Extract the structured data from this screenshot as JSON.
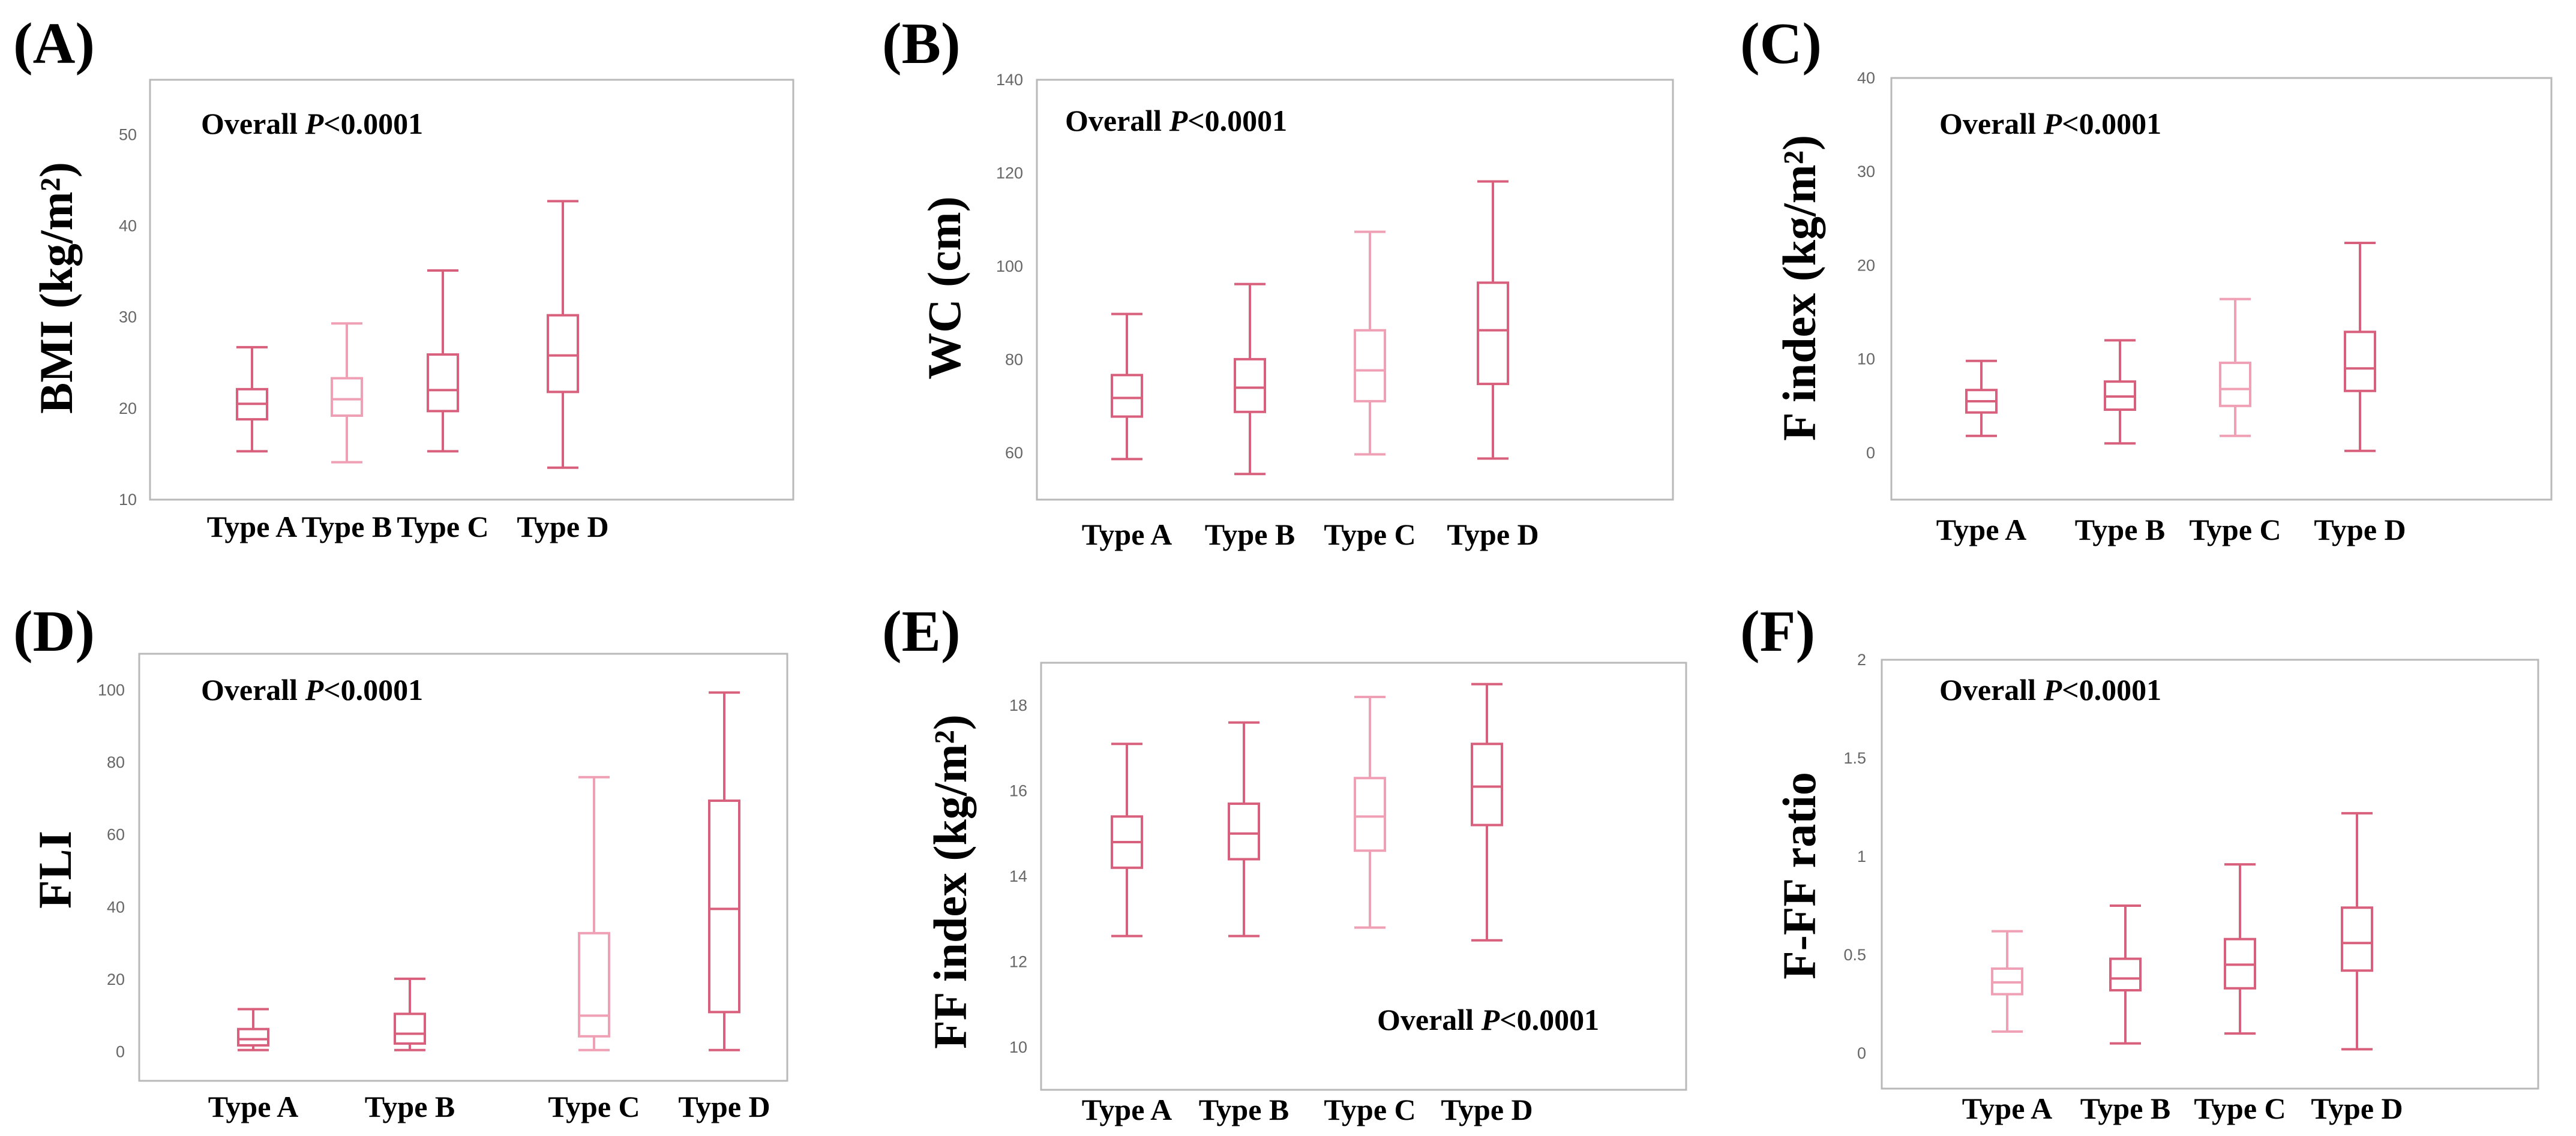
{
  "chart_data": [
    {
      "type": "box",
      "panel_label": "(A)",
      "ylabel": "BMI (kg/m²)",
      "categories": [
        "Type A",
        "Type B",
        "Type C",
        "Type D"
      ],
      "yticks": [
        10,
        20,
        30,
        40,
        50
      ],
      "ylim": [
        10,
        56
      ],
      "annotation_prefix": "Overall ",
      "annotation_italic": "P",
      "annotation_suffix": "<0.0001",
      "annotation_position": "top-left",
      "boxes": [
        {
          "min": 15.3,
          "q1": 18.8,
          "median": 20.5,
          "q3": 22.1,
          "max": 26.7
        },
        {
          "min": 14.1,
          "q1": 19.2,
          "median": 21.0,
          "q3": 23.3,
          "max": 29.3
        },
        {
          "min": 15.3,
          "q1": 19.7,
          "median": 22.0,
          "q3": 25.9,
          "max": 35.1
        },
        {
          "min": 13.5,
          "q1": 21.8,
          "median": 25.8,
          "q3": 30.2,
          "max": 42.7
        }
      ]
    },
    {
      "type": "box",
      "panel_label": "(B)",
      "ylabel": "WC (cm)",
      "categories": [
        "Type A",
        "Type B",
        "Type C",
        "Type D"
      ],
      "yticks": [
        60,
        80,
        100,
        120,
        140
      ],
      "ylim": [
        50,
        140
      ],
      "annotation_prefix": "Overall ",
      "annotation_italic": "P",
      "annotation_suffix": "<0.0001",
      "annotation_position": "top-left",
      "boxes": [
        {
          "min": 58.7,
          "q1": 67.8,
          "median": 71.8,
          "q3": 76.7,
          "max": 89.8
        },
        {
          "min": 55.5,
          "q1": 68.8,
          "median": 74.0,
          "q3": 80.1,
          "max": 96.2
        },
        {
          "min": 59.7,
          "q1": 71.1,
          "median": 77.7,
          "q3": 86.3,
          "max": 107.4
        },
        {
          "min": 58.8,
          "q1": 74.8,
          "median": 86.3,
          "q3": 96.5,
          "max": 118.2
        }
      ]
    },
    {
      "type": "box",
      "panel_label": "(C)",
      "ylabel": "F index (kg/m²)",
      "categories": [
        "Type A",
        "Type B",
        "Type C",
        "Type D"
      ],
      "yticks": [
        0,
        10,
        20,
        30,
        40
      ],
      "ylim": [
        -5,
        40
      ],
      "annotation_prefix": "Overall ",
      "annotation_italic": "P",
      "annotation_suffix": "<0.0001",
      "annotation_position": "top-left",
      "boxes": [
        {
          "min": 1.8,
          "q1": 4.3,
          "median": 5.5,
          "q3": 6.7,
          "max": 9.8
        },
        {
          "min": 1.0,
          "q1": 4.6,
          "median": 6.0,
          "q3": 7.6,
          "max": 12.0
        },
        {
          "min": 1.8,
          "q1": 5.0,
          "median": 6.8,
          "q3": 9.6,
          "max": 16.4
        },
        {
          "min": 0.2,
          "q1": 6.6,
          "median": 9.0,
          "q3": 12.9,
          "max": 22.4
        }
      ]
    },
    {
      "type": "box",
      "panel_label": "(D)",
      "ylabel": "FLI",
      "categories": [
        "Type A",
        "Type B",
        "Type C",
        "Type D"
      ],
      "yticks": [
        0,
        20,
        40,
        60,
        80,
        100
      ],
      "ylim": [
        -8,
        110
      ],
      "annotation_prefix": "Overall ",
      "annotation_italic": "P",
      "annotation_suffix": "<0.0001",
      "annotation_position": "top-left",
      "boxes": [
        {
          "min": 0.5,
          "q1": 1.8,
          "median": 3.5,
          "q3": 6.3,
          "max": 11.8
        },
        {
          "min": 0.5,
          "q1": 2.3,
          "median": 5.0,
          "q3": 10.5,
          "max": 20.2
        },
        {
          "min": 0.5,
          "q1": 4.3,
          "median": 10.0,
          "q3": 32.8,
          "max": 75.9
        },
        {
          "min": 0.5,
          "q1": 11.0,
          "median": 39.5,
          "q3": 69.4,
          "max": 99.3
        }
      ]
    },
    {
      "type": "box",
      "panel_label": "(E)",
      "ylabel": "FF index (kg/m²)",
      "categories": [
        "Type A",
        "Type B",
        "Type C",
        "Type D"
      ],
      "yticks": [
        10,
        12,
        14,
        16,
        18
      ],
      "ylim": [
        9,
        19
      ],
      "annotation_prefix": "Overall ",
      "annotation_italic": "P",
      "annotation_suffix": "<0.0001",
      "annotation_position": "bottom-right",
      "boxes": [
        {
          "min": 12.6,
          "q1": 14.2,
          "median": 14.8,
          "q3": 15.4,
          "max": 17.1
        },
        {
          "min": 12.6,
          "q1": 14.4,
          "median": 15.0,
          "q3": 15.7,
          "max": 17.6
        },
        {
          "min": 12.8,
          "q1": 14.6,
          "median": 15.4,
          "q3": 16.3,
          "max": 18.2
        },
        {
          "min": 12.5,
          "q1": 15.2,
          "median": 16.1,
          "q3": 17.1,
          "max": 18.5
        }
      ]
    },
    {
      "type": "box",
      "panel_label": "(F)",
      "ylabel": "F-FF ratio",
      "categories": [
        "Type A",
        "Type B",
        "Type C",
        "Type D"
      ],
      "yticks": [
        0,
        0.5,
        1,
        1.5,
        2
      ],
      "yticklabels": [
        "0",
        "0.5",
        "1",
        "1.5",
        "2"
      ],
      "ylim": [
        -0.18,
        2
      ],
      "annotation_prefix": "Overall ",
      "annotation_italic": "P",
      "annotation_suffix": "<0.0001",
      "annotation_position": "top-left",
      "boxes": [
        {
          "min": 0.11,
          "q1": 0.3,
          "median": 0.36,
          "q3": 0.43,
          "max": 0.62
        },
        {
          "min": 0.05,
          "q1": 0.32,
          "median": 0.38,
          "q3": 0.48,
          "max": 0.75
        },
        {
          "min": 0.1,
          "q1": 0.33,
          "median": 0.45,
          "q3": 0.58,
          "max": 0.96
        },
        {
          "min": 0.02,
          "q1": 0.42,
          "median": 0.56,
          "q3": 0.74,
          "max": 1.22
        }
      ]
    }
  ],
  "colors": {
    "box_dark": "#d9607c",
    "box_light": "#f0a0b4",
    "frame": "#b9b9b9",
    "tick": "#666666"
  }
}
